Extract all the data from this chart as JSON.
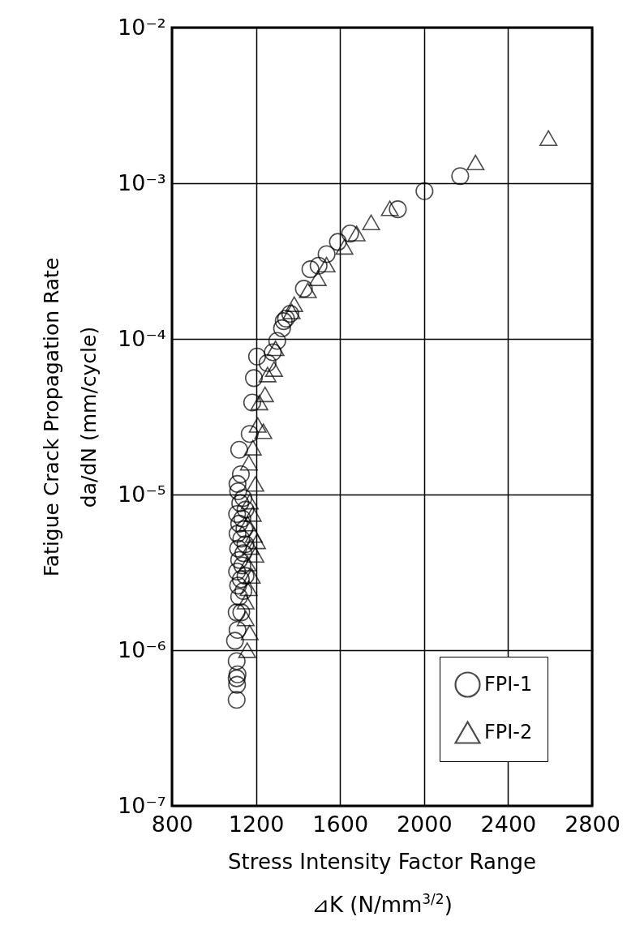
{
  "chart_data": {
    "type": "scatter",
    "xlabel": "Stress Intensity Factor Range\n⊿K (N/mm$^{3/2}$)",
    "ylabel": "Fatigue Crack Propagation Rate\nda/dN (mm/cycle)",
    "xlim": [
      800,
      2800
    ],
    "xticks": [
      800,
      1200,
      1600,
      2000,
      2400,
      2800
    ],
    "ylim": [
      1e-07,
      0.01
    ],
    "yticks": [
      {
        "value": 1e-07,
        "label": "10⁻⁷"
      },
      {
        "value": 1e-06,
        "label": "10⁻⁶"
      },
      {
        "value": 1e-05,
        "label": "10⁻⁵"
      },
      {
        "value": 0.0001,
        "label": "10⁻⁴"
      },
      {
        "value": 0.001,
        "label": "10⁻³"
      },
      {
        "value": 0.01,
        "label": "10⁻²"
      }
    ],
    "log": "y",
    "grid": true,
    "legend": "bottom right",
    "series": [
      {
        "name": "FPI-1",
        "color": "#000000",
        "marker": "circle",
        "x": [
          2172,
          2002,
          1875,
          1648,
          1590,
          1536,
          1498,
          1459,
          1428,
          1363,
          1343,
          1332,
          1324,
          1301,
          1280,
          1205,
          1255,
          1190,
          1182,
          1170,
          1120,
          1128,
          1112,
          1115,
          1140,
          1125,
          1150,
          1110,
          1135,
          1120,
          1145,
          1112,
          1130,
          1150,
          1115,
          1140,
          1120,
          1135,
          1110,
          1150,
          1128,
          1115,
          1140,
          1120,
          1108,
          1130,
          1112,
          1100,
          1108,
          1112,
          1108,
          1110,
          1108
        ],
        "values": [
          0.00111,
          0.00089,
          0.00068,
          0.000475,
          0.00042,
          0.00035,
          0.000295,
          0.00028,
          0.00021,
          0.000145,
          0.000135,
          0.00013,
          0.000117,
          9.7e-05,
          8.2e-05,
          7.7e-05,
          7e-05,
          5.6e-05,
          3.9e-05,
          2.45e-05,
          1.94e-05,
          1.35e-05,
          1.17e-05,
          1.05e-05,
          9.5e-06,
          8.8e-06,
          8e-06,
          7.5e-06,
          7e-06,
          6.5e-06,
          6e-06,
          5.6e-06,
          5.2e-06,
          4.8e-06,
          4.5e-06,
          4.2e-06,
          3.8e-06,
          3.5e-06,
          3.2e-06,
          3e-06,
          2.85e-06,
          2.6e-06,
          2.4e-06,
          2.2e-06,
          1.75e-06,
          1.75e-06,
          1.35e-06,
          1.15e-06,
          8.5e-07,
          7e-07,
          6.6e-07,
          6e-07,
          4.8e-07
        ]
      },
      {
        "name": "FPI-2",
        "color": "#000000",
        "marker": "triangle",
        "x": [
          2592,
          2245,
          1837,
          1748,
          1679,
          1621,
          1536,
          1494,
          1447,
          1382,
          1370,
          1293,
          1286,
          1255,
          1243,
          1216,
          1208,
          1235,
          1185,
          1166,
          1197,
          1170,
          1185,
          1160,
          1190,
          1205,
          1175,
          1197,
          1160,
          1180,
          1165,
          1151,
          1151,
          1170,
          1158
        ],
        "values": [
          0.00195,
          0.00136,
          0.00069,
          0.00056,
          0.000475,
          0.00039,
          0.0003,
          0.000245,
          0.000205,
          0.000167,
          0.00015,
          8.7e-05,
          6.4e-05,
          5.9e-05,
          4.4e-05,
          3.9e-05,
          2.8e-05,
          2.55e-05,
          2e-05,
          1.6e-05,
          1.17e-05,
          9e-06,
          7.5e-06,
          6.5e-06,
          5.5e-06,
          5e-06,
          4.6e-06,
          4.1e-06,
          3.6e-06,
          3e-06,
          2.5e-06,
          2.05e-06,
          1.6e-06,
          1.3e-06,
          1e-06
        ]
      }
    ]
  }
}
